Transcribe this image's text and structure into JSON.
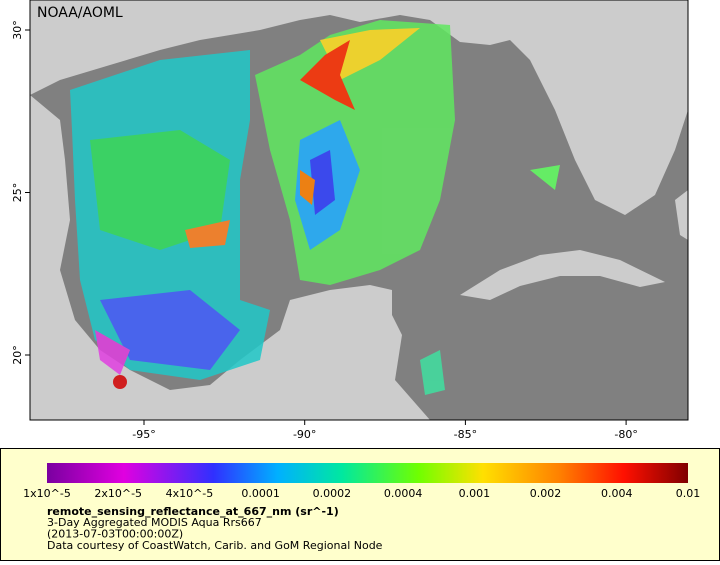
{
  "map": {
    "credit": "NOAA/AOML",
    "lat_labels": [
      "30°",
      "25°",
      "20°"
    ],
    "lon_labels": [
      "-95°",
      "-90°",
      "-85°",
      "-80°"
    ]
  },
  "legend": {
    "colorbar_labels": [
      "1x10^-5",
      "2x10^-5",
      "4x10^-5",
      "0.0001",
      "0.0002",
      "0.0004",
      "0.001",
      "0.002",
      "0.004",
      "0.01"
    ],
    "variable": "remote_sensing_reflectance_at_667_nm (sr^-1)",
    "lines": [
      "3-Day Aggregated MODIS Aqua Rrs667",
      "(2013-07-03T00:00:00Z)",
      "Data courtesy of CoastWatch, Carib. and GoM Regional Node"
    ]
  }
}
